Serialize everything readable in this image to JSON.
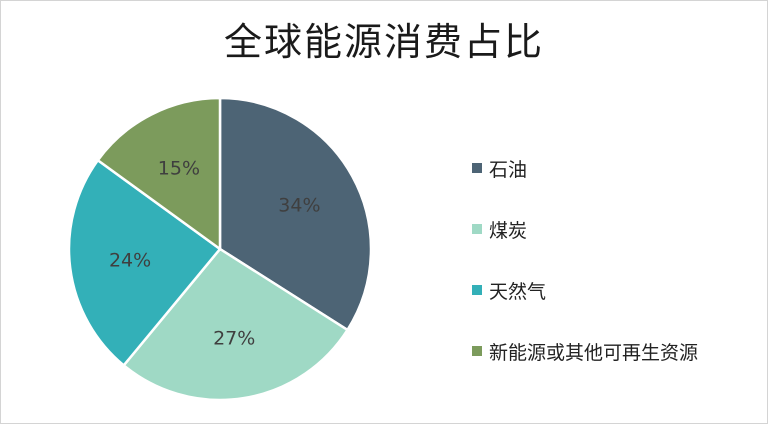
{
  "chart_data": {
    "type": "pie",
    "title": "全球能源消费占比",
    "categories": [
      "石油",
      "煤炭",
      "天然气",
      "新能源或其他可再生资源"
    ],
    "values": [
      34,
      27,
      24,
      15
    ],
    "labels": [
      "34%",
      "27%",
      "24%",
      "15%"
    ],
    "colors": [
      "#4d6475",
      "#9fd9c5",
      "#33b0b8",
      "#7c9b5c"
    ],
    "legend_position": "right"
  }
}
